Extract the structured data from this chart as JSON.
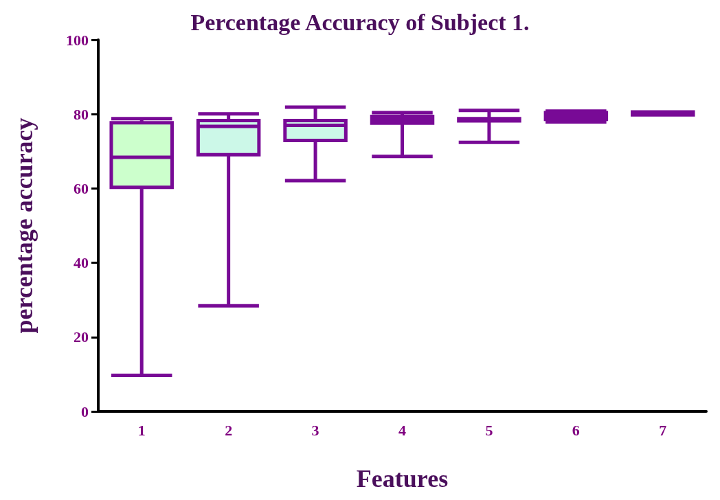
{
  "chart_data": {
    "type": "box",
    "title": "Percentage Accuracy of Subject 1.",
    "xlabel": "Features",
    "ylabel": "percentage accuracy",
    "categories": [
      "1",
      "2",
      "3",
      "4",
      "5",
      "6",
      "7"
    ],
    "color": "#780a96",
    "colors": [
      "#ccffcc",
      "#ccf8e8",
      "#ccf8e8",
      "#780a96",
      "#780a96",
      "#780a96",
      "#780a96"
    ],
    "boxes": [
      {
        "low": 9.7,
        "q1": 60.3,
        "median": 68.4,
        "q3": 77.7,
        "high": 78.8
      },
      {
        "low": 28.4,
        "q1": 69.1,
        "median": 76.7,
        "q3": 78.3,
        "high": 80.1
      },
      {
        "low": 62.1,
        "q1": 72.9,
        "median": 77,
        "q3": 78.3,
        "high": 81.9
      },
      {
        "low": 68.6,
        "q1": 77.6,
        "median": 78.5,
        "q3": 79.4,
        "high": 80.4
      },
      {
        "low": 72.4,
        "q1": 78.2,
        "median": 78.5,
        "q3": 78.8,
        "high": 81
      },
      {
        "low": 77.9,
        "q1": 78.6,
        "median": 79.5,
        "q3": 80.4,
        "high": 80.8
      },
      {
        "low": 79.8,
        "q1": 79.8,
        "median": 80.2,
        "q3": 80.6,
        "high": 80.6
      }
    ],
    "ylim": [
      0,
      100
    ],
    "yticks": [
      0,
      20,
      40,
      60,
      80,
      100
    ],
    "grid": false
  }
}
